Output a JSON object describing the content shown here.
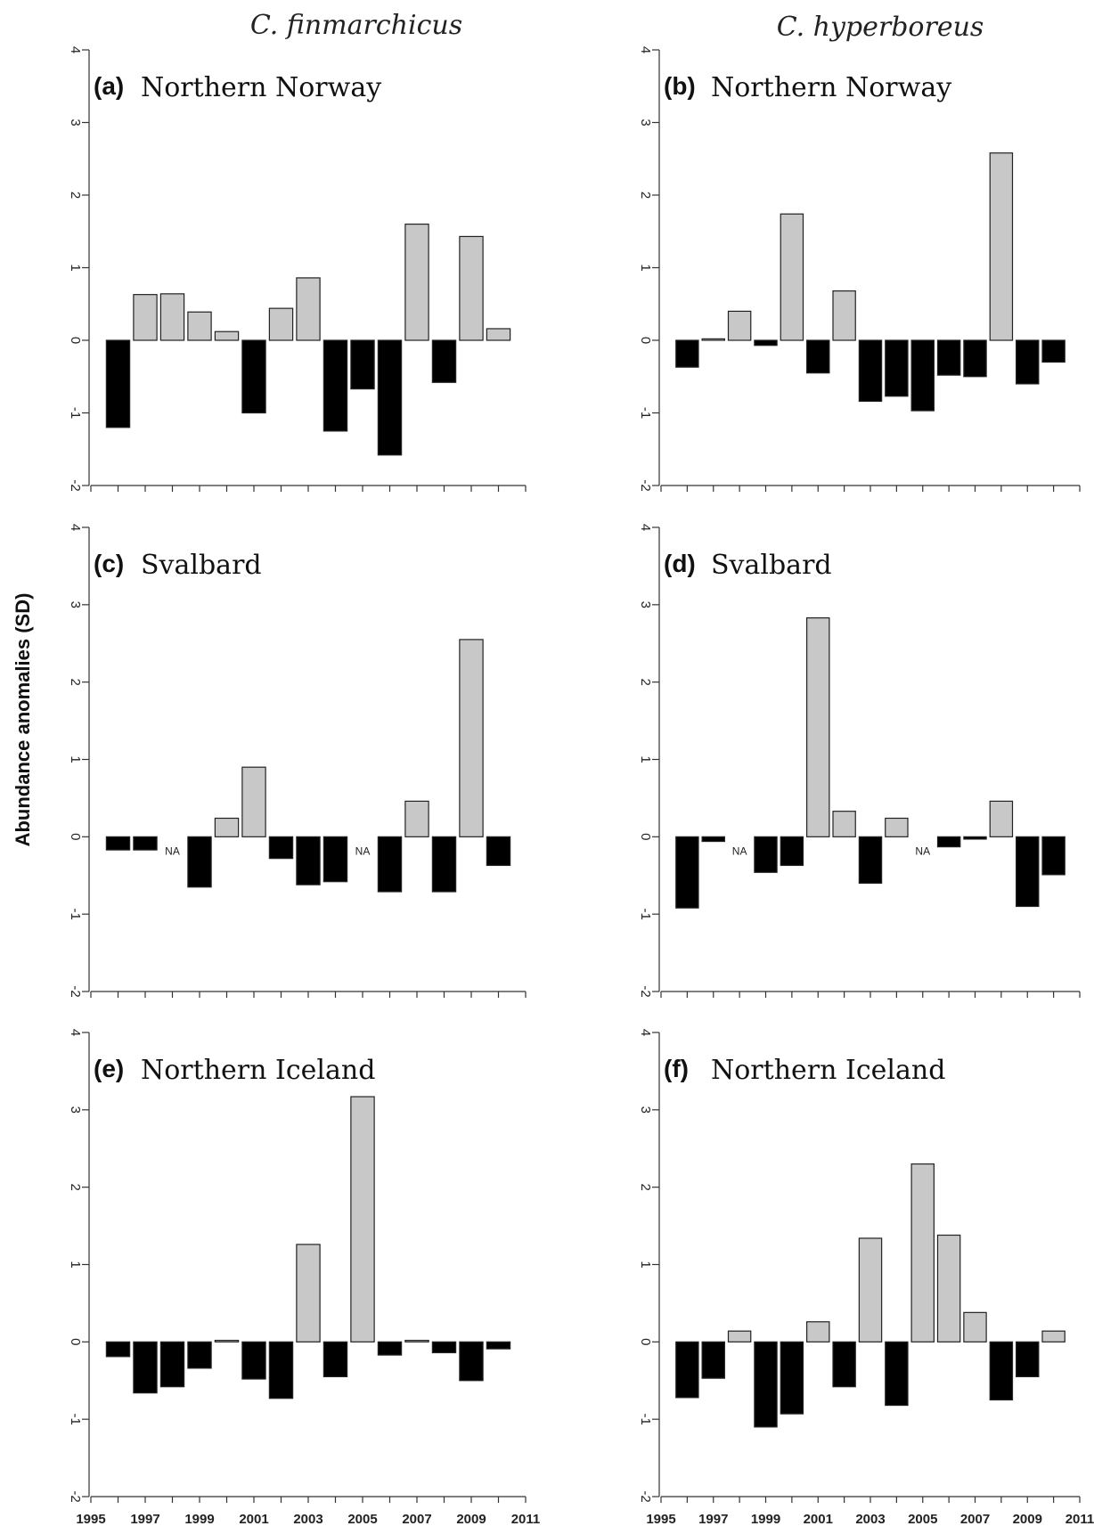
{
  "column_titles": [
    "C. finmarchicus",
    "C. hyperboreus"
  ],
  "y_axis_label": "Abundance anomalies (SD)",
  "colors": {
    "positive": "#c8c8c8",
    "negative": "#000000",
    "axis": "#333333"
  },
  "chart_data": [
    {
      "type": "bar",
      "panel": "(a)",
      "region": "Northern Norway",
      "species": "C. finmarchicus",
      "x": [
        1996,
        1997,
        1998,
        1999,
        2000,
        2001,
        2002,
        2003,
        2004,
        2005,
        2006,
        2007,
        2008,
        2009,
        2010
      ],
      "values": [
        -1.2,
        0.63,
        0.64,
        0.39,
        0.12,
        -1.0,
        0.44,
        0.86,
        -1.25,
        -0.67,
        -1.58,
        1.6,
        -0.58,
        1.43,
        0.16
      ],
      "ylim": [
        -2,
        4
      ],
      "xlim": [
        1995,
        2011
      ],
      "na": []
    },
    {
      "type": "bar",
      "panel": "(b)",
      "region": "Northern Norway",
      "species": "C. hyperboreus",
      "x": [
        1996,
        1997,
        1998,
        1999,
        2000,
        2001,
        2002,
        2003,
        2004,
        2005,
        2006,
        2007,
        2008,
        2009,
        2010
      ],
      "values": [
        -0.37,
        0.02,
        0.4,
        -0.07,
        1.74,
        -0.45,
        0.68,
        -0.84,
        -0.77,
        -0.97,
        -0.48,
        -0.5,
        2.58,
        -0.6,
        -0.3
      ],
      "ylim": [
        -2,
        4
      ],
      "xlim": [
        1995,
        2011
      ],
      "na": []
    },
    {
      "type": "bar",
      "panel": "(c)",
      "region": "Svalbard",
      "species": "C. finmarchicus",
      "x": [
        1996,
        1997,
        1998,
        1999,
        2000,
        2001,
        2002,
        2003,
        2004,
        2005,
        2006,
        2007,
        2008,
        2009,
        2010
      ],
      "values": [
        -0.17,
        -0.17,
        null,
        -0.65,
        0.24,
        0.9,
        -0.28,
        -0.62,
        -0.58,
        null,
        -0.71,
        0.46,
        -0.71,
        2.55,
        -0.37
      ],
      "ylim": [
        -2,
        4
      ],
      "xlim": [
        1995,
        2011
      ],
      "na": [
        1998,
        2005
      ],
      "na_label": "NA"
    },
    {
      "type": "bar",
      "panel": "(d)",
      "region": "Svalbard",
      "species": "C. hyperboreus",
      "x": [
        1996,
        1997,
        1998,
        1999,
        2000,
        2001,
        2002,
        2003,
        2004,
        2005,
        2006,
        2007,
        2008,
        2009,
        2010
      ],
      "values": [
        -0.92,
        -0.06,
        null,
        -0.46,
        -0.37,
        2.83,
        0.33,
        -0.6,
        0.24,
        null,
        -0.13,
        -0.03,
        0.46,
        -0.9,
        -0.49
      ],
      "ylim": [
        -2,
        4
      ],
      "xlim": [
        1995,
        2011
      ],
      "na": [
        1998,
        2005
      ],
      "na_label": "NA"
    },
    {
      "type": "bar",
      "panel": "(e)",
      "region": "Northern Iceland",
      "species": "C. finmarchicus",
      "x": [
        1996,
        1997,
        1998,
        1999,
        2000,
        2001,
        2002,
        2003,
        2004,
        2005,
        2006,
        2007,
        2008,
        2009,
        2010
      ],
      "values": [
        -0.19,
        -0.66,
        -0.58,
        -0.34,
        0.02,
        -0.48,
        -0.73,
        1.26,
        -0.45,
        3.17,
        -0.17,
        0.02,
        -0.14,
        -0.5,
        -0.09
      ],
      "ylim": [
        -2,
        4
      ],
      "xlim": [
        1995,
        2011
      ],
      "na": []
    },
    {
      "type": "bar",
      "panel": "(f)",
      "region": "Northern Iceland",
      "species": "C. hyperboreus",
      "x": [
        1996,
        1997,
        1998,
        1999,
        2000,
        2001,
        2002,
        2003,
        2004,
        2005,
        2006,
        2007,
        2008,
        2009,
        2010
      ],
      "values": [
        -0.72,
        -0.47,
        0.14,
        -1.1,
        -0.93,
        0.26,
        -0.58,
        1.34,
        -0.82,
        2.3,
        1.38,
        0.38,
        -0.75,
        -0.45,
        0.14
      ],
      "ylim": [
        -2,
        4
      ],
      "xlim": [
        1995,
        2011
      ],
      "na": []
    }
  ],
  "y_ticks": [
    "-2",
    "-1",
    "0",
    "1",
    "2",
    "3",
    "4"
  ],
  "x_ticks": [
    "1995",
    "1997",
    "1999",
    "2001",
    "2003",
    "2005",
    "2007",
    "2009",
    "2011"
  ]
}
